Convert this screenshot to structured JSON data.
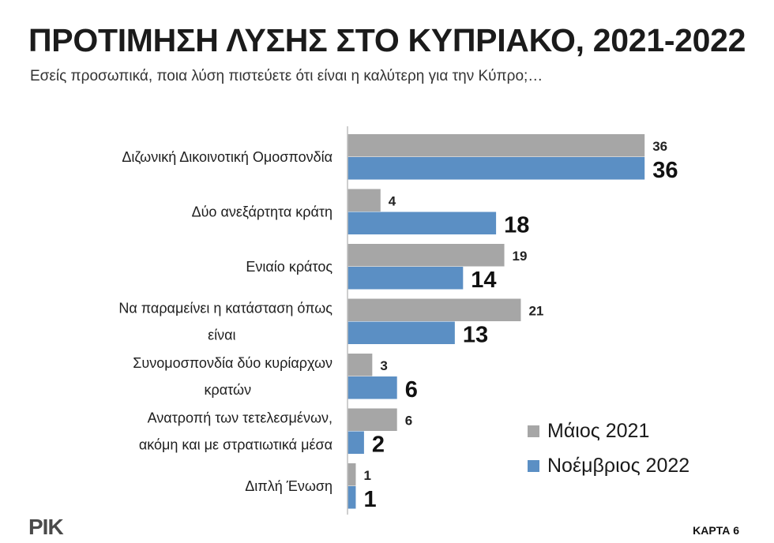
{
  "header": {
    "title": "ΠΡΟΤΙΜΗΣΗ ΛΥΣΗΣ ΣΤΟ ΚΥΠΡΙΑΚΟ, 2021-2022",
    "subtitle": "Εσείς προσωπικά, ποια λύση πιστεύετε ότι είναι η καλύτερη για την Κύπρο;…"
  },
  "chart_data": {
    "type": "bar",
    "orientation": "horizontal",
    "categories": [
      [
        "Διζωνική Δικοινοτική Ομοσπονδία"
      ],
      [
        "Δύο ανεξάρτητα κράτη"
      ],
      [
        "Ενιαίο κράτος"
      ],
      [
        "Να παραμείνει η κατάσταση όπως",
        "είναι"
      ],
      [
        "Συνομοσπονδία δύο κυρίαρχων",
        "κρατών"
      ],
      [
        "Ανατροπή των τετελεσμένων,",
        "ακόμη και με στρατιωτικά μέσα"
      ],
      [
        "Διπλή Ένωση"
      ]
    ],
    "series": [
      {
        "name": "Μάιος 2021",
        "color": "#a6a6a6",
        "values": [
          36,
          4,
          19,
          21,
          3,
          6,
          1
        ]
      },
      {
        "name": "Νοέμβριος 2022",
        "color": "#5b8fc4",
        "values": [
          36,
          18,
          14,
          13,
          6,
          2,
          1
        ]
      }
    ],
    "xlim": [
      0,
      45
    ],
    "grid": false,
    "legend": "bottom-right",
    "data_labels": true
  },
  "footer": {
    "logo": "ΡΙΚ",
    "map_label": "ΚΑΡΤΑ 6"
  }
}
